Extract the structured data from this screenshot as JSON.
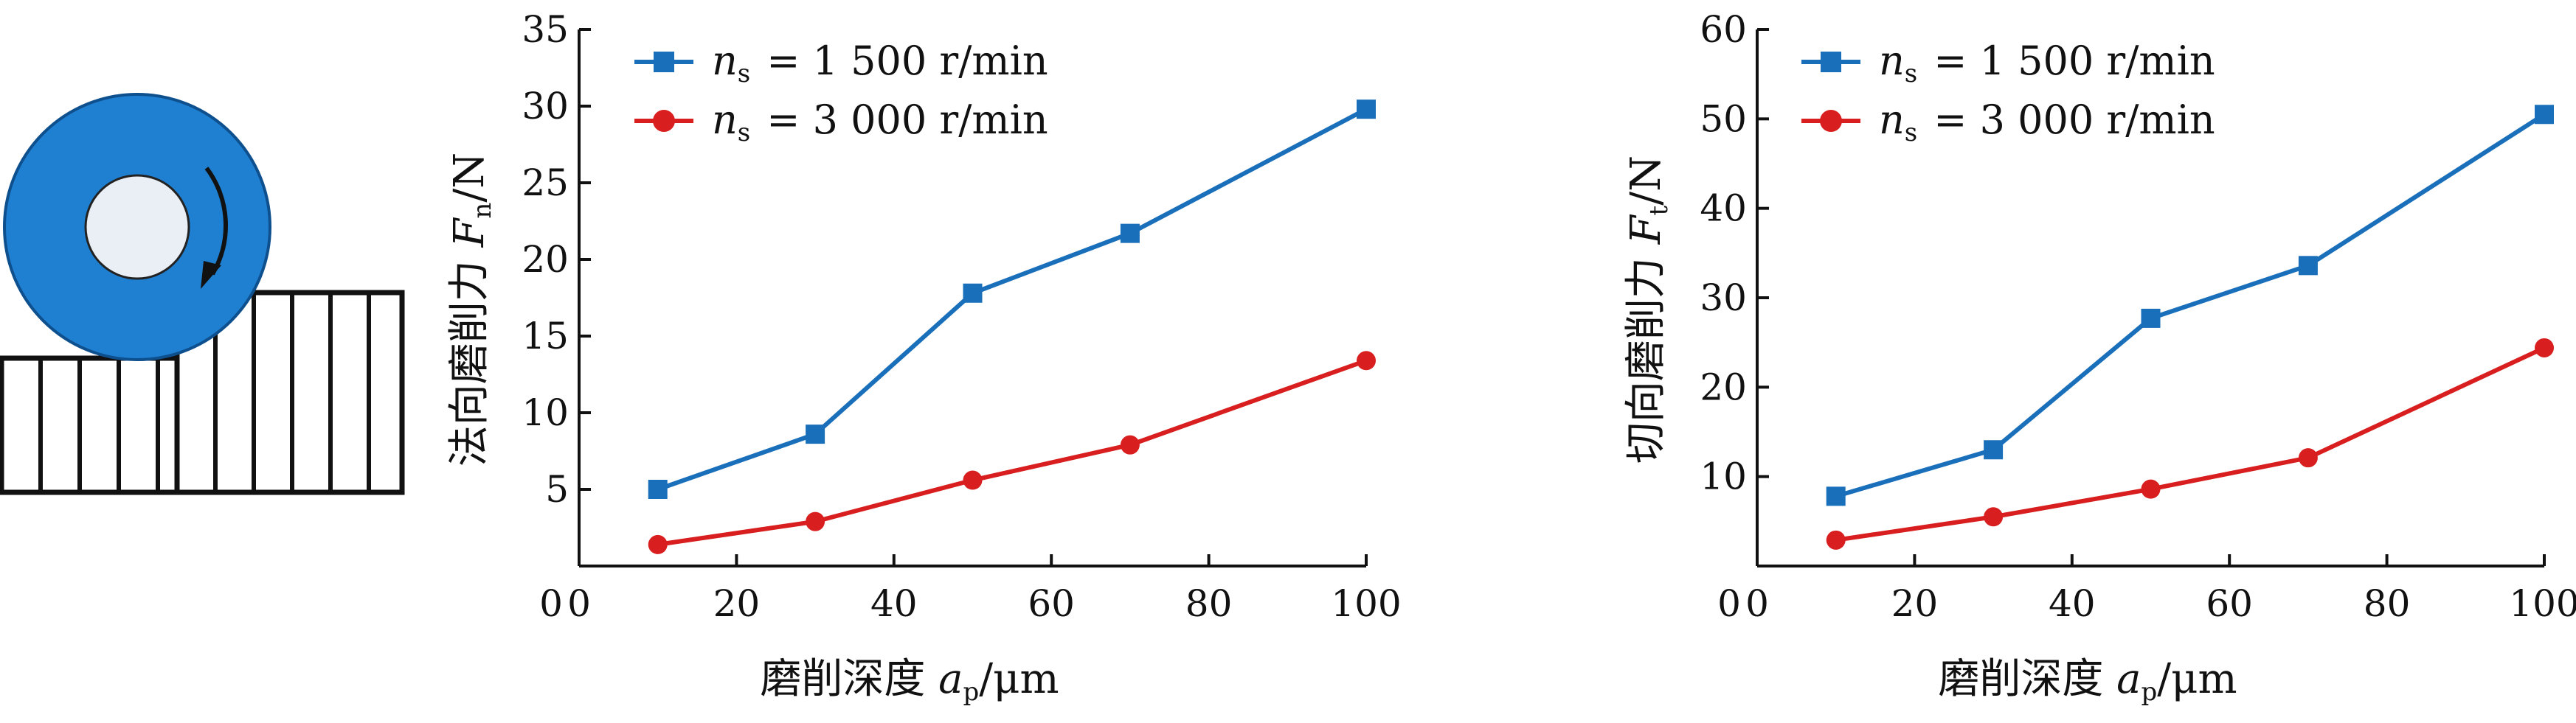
{
  "colors": {
    "series_1500": "#1a6fba",
    "series_3000": "#d81e1e",
    "wheel": "#1f7fd0",
    "axis": "#111111"
  },
  "icons": [
    "grinding-wheel-icon",
    "rotation-arrow-icon",
    "workpiece-icon"
  ],
  "legend": {
    "ns_var": "n",
    "ns_sub": "s",
    "entry1": "= 1 500 r/min",
    "entry2": "= 3 000 r/min"
  },
  "xaxis_title": {
    "prefix": "磨削深度 ",
    "var": "a",
    "sub": "p",
    "unit": "/μm"
  },
  "chart_data": [
    {
      "type": "line",
      "xlabel": "磨削深度 a_p/μm",
      "ylabel": "法向磨削力 F_n/N",
      "ylabel_parts": {
        "prefix": "法向磨削力 ",
        "var": "F",
        "sub": "n",
        "unit": "/N"
      },
      "xlim": [
        0,
        100
      ],
      "ylim": [
        0,
        35
      ],
      "xticks": [
        0,
        20,
        40,
        60,
        80,
        100
      ],
      "yticks": [
        5,
        10,
        15,
        20,
        25,
        30,
        35
      ],
      "grid": false,
      "legend_position": "top-left",
      "series": [
        {
          "name": "n_s = 1 500 r/min",
          "marker": "square",
          "color": "#1a6fba",
          "x": [
            10,
            30,
            50,
            70,
            100
          ],
          "y": [
            5.0,
            8.6,
            17.8,
            21.7,
            29.8
          ]
        },
        {
          "name": "n_s = 3 000 r/min",
          "marker": "circle",
          "color": "#d81e1e",
          "x": [
            10,
            30,
            50,
            70,
            100
          ],
          "y": [
            1.4,
            2.9,
            5.6,
            7.9,
            13.4
          ]
        }
      ]
    },
    {
      "type": "line",
      "xlabel": "磨削深度 a_p/μm",
      "ylabel": "切向磨削力 F_t/N",
      "ylabel_parts": {
        "prefix": "切向磨削力 ",
        "var": "F",
        "sub": "t",
        "unit": "/N"
      },
      "xlim": [
        0,
        100
      ],
      "ylim": [
        0,
        60
      ],
      "xticks": [
        0,
        20,
        40,
        60,
        80,
        100
      ],
      "yticks": [
        10,
        20,
        30,
        40,
        50,
        60
      ],
      "grid": false,
      "legend_position": "top-left",
      "series": [
        {
          "name": "n_s = 1 500 r/min",
          "marker": "square",
          "color": "#1a6fba",
          "x": [
            10,
            30,
            50,
            70,
            100
          ],
          "y": [
            7.8,
            13.0,
            27.7,
            33.6,
            50.5
          ]
        },
        {
          "name": "n_s = 3 000 r/min",
          "marker": "circle",
          "color": "#d81e1e",
          "x": [
            10,
            30,
            50,
            70,
            100
          ],
          "y": [
            2.9,
            5.5,
            8.6,
            12.1,
            24.4
          ]
        }
      ]
    }
  ]
}
